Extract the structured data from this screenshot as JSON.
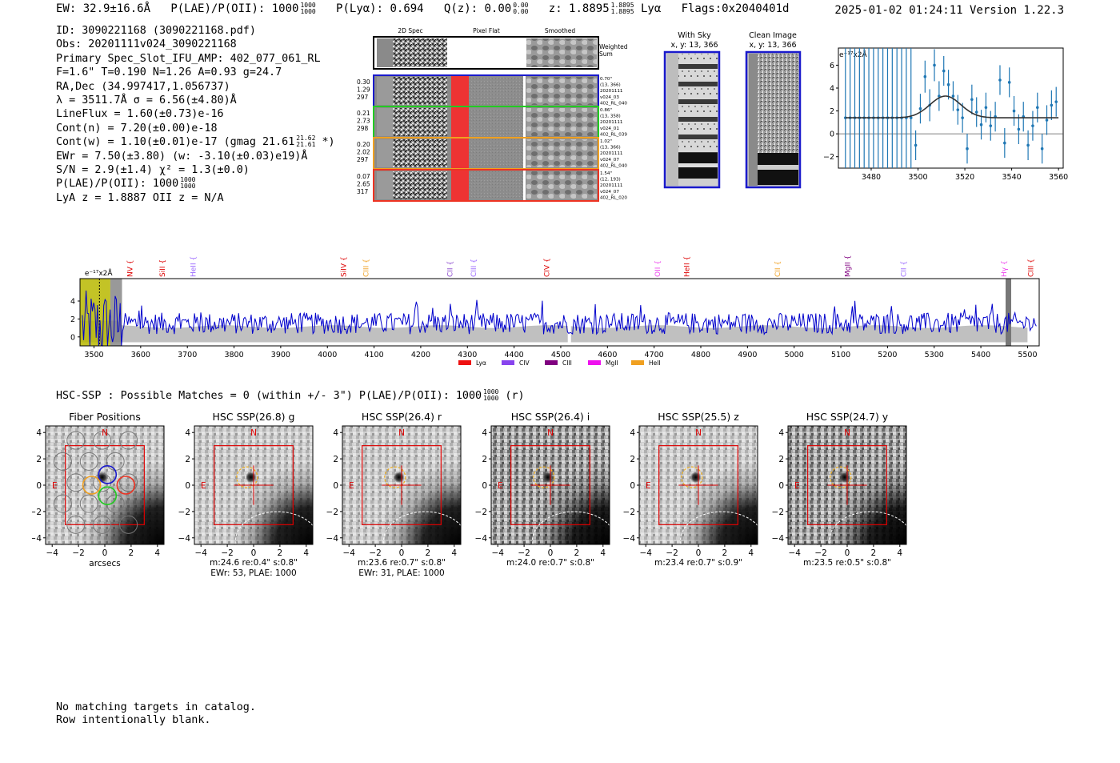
{
  "header": {
    "ew": "EW: 32.9±16.6Å",
    "plae_label": "P(LAE)/P(OII): 1000",
    "plae_hi": "1000",
    "plae_lo": "1000",
    "plya": "P(Lyα): 0.694",
    "qz_label": "Q(z): 0.00",
    "qz_hi": "0.00",
    "qz_lo": "0.00",
    "z_label": "z: 1.8895",
    "z_hi": "1.8895",
    "z_lo": "1.8895",
    "z_line": "Lyα",
    "flags": "Flags:0x2040401d",
    "timestamp": "2025-01-02 01:24:11  Version 1.22.3"
  },
  "info_lines": {
    "id": "ID: 3090221168 (3090221168.pdf)",
    "obs": "Obs: 20201111v024_3090221168",
    "primary": "Primary Spec_Slot_IFU_AMP: 402_077_061_RL",
    "fit": "F=1.6\"  T=0.190  N=1.26  A=0.93  g=24.7",
    "radec": "RA,Dec (34.997417,1.056737)",
    "lambda": "λ = 3511.7Å   σ = 6.56(±4.80)Å",
    "lineflux": "LineFlux = 1.60(±0.73)e-16",
    "contn": "Cont(n) = 7.20(±0.00)e-18",
    "contw": "Cont(w) = 1.10(±0.01)e-17 (gmag 21.61",
    "contw_hi": "21.62",
    "contw_lo": "21.61",
    "contw_end": "*)",
    "ewr": "EWr = 7.50(±3.80) (w: -3.10(±0.03)e19)Å",
    "sn": "S/N = 2.9(±1.4)  χ² = 1.3(±0.0)",
    "plae": "P(LAE)/P(OII): 1000",
    "plae_hi": "1000",
    "plae_lo": "1000",
    "lya": "LyA z = 1.8887  OII z = N/A"
  },
  "cutouts": {
    "headers": [
      "2D Spec",
      "Pixel Flat",
      "Smoothed"
    ],
    "weighted_sum": [
      "Weighted",
      "Sum"
    ],
    "rows": [
      {
        "left": [
          "0.30",
          "1.29",
          "297"
        ],
        "right": [
          "0.70\"",
          "(13, 366)",
          "20201111",
          "v024_03",
          "402_RL_040"
        ],
        "color": "#1a1acc"
      },
      {
        "left": [
          "0.21",
          "2.73",
          "298"
        ],
        "right": [
          "0.86\"",
          "(13, 358)",
          "20201111",
          "v024_01",
          "402_RL_039"
        ],
        "color": "#22cc22"
      },
      {
        "left": [
          "0.20",
          "2.02",
          "297"
        ],
        "right": [
          "1.02\"",
          "(13, 366)",
          "20201111",
          "v024_07",
          "402_RL_040"
        ],
        "color": "#f0a020"
      },
      {
        "left": [
          "0.07",
          "2.65",
          "317"
        ],
        "right": [
          "1.54\"",
          "(12, 193)",
          "20201111",
          "v024_07",
          "402_RL_020"
        ],
        "color": "#ee3322"
      }
    ]
  },
  "sky_panels": {
    "with_sky": [
      "With Sky",
      "x, y: 13, 366"
    ],
    "clean": [
      "Clean Image",
      "x, y: 13, 366"
    ]
  },
  "chart_data": [
    {
      "type": "scatter",
      "title": "",
      "ylabel": "e⁻¹⁷x2Å",
      "xlim": [
        3466,
        3562
      ],
      "ylim": [
        -3,
        7.5
      ],
      "xticks": [
        3480,
        3500,
        3520,
        3540,
        3560
      ],
      "yticks": [
        -2,
        0,
        2,
        4,
        6
      ],
      "gaussian_fit": {
        "center": 3511.7,
        "sigma": 6.56,
        "amplitude": 1.9,
        "baseline": 1.4
      },
      "points": [
        {
          "x": 3469,
          "y": 1.4,
          "err": 8
        },
        {
          "x": 3471,
          "y": 1.4,
          "err": 8
        },
        {
          "x": 3473,
          "y": 1.4,
          "err": 8
        },
        {
          "x": 3475,
          "y": 1.4,
          "err": 8
        },
        {
          "x": 3477,
          "y": 1.4,
          "err": 8
        },
        {
          "x": 3479,
          "y": 1.4,
          "err": 8
        },
        {
          "x": 3481,
          "y": 1.4,
          "err": 8
        },
        {
          "x": 3483,
          "y": 1.4,
          "err": 8
        },
        {
          "x": 3485,
          "y": 1.4,
          "err": 8
        },
        {
          "x": 3487,
          "y": 1.4,
          "err": 8
        },
        {
          "x": 3489,
          "y": 1.4,
          "err": 8
        },
        {
          "x": 3491,
          "y": 1.4,
          "err": 8
        },
        {
          "x": 3493,
          "y": 1.4,
          "err": 8
        },
        {
          "x": 3495,
          "y": 1.4,
          "err": 8
        },
        {
          "x": 3497,
          "y": 1.4,
          "err": 8
        },
        {
          "x": 3499,
          "y": -1.0,
          "err": 1.3
        },
        {
          "x": 3501,
          "y": 2.2,
          "err": 1.3
        },
        {
          "x": 3503,
          "y": 5.0,
          "err": 1.4
        },
        {
          "x": 3505,
          "y": 2.5,
          "err": 1.4
        },
        {
          "x": 3507,
          "y": 6.0,
          "err": 1.4
        },
        {
          "x": 3509,
          "y": 3.3,
          "err": 1.3
        },
        {
          "x": 3511,
          "y": 5.5,
          "err": 1.3
        },
        {
          "x": 3513,
          "y": 4.3,
          "err": 1.3
        },
        {
          "x": 3515,
          "y": 3.3,
          "err": 1.3
        },
        {
          "x": 3517,
          "y": 2.1,
          "err": 1.3
        },
        {
          "x": 3519,
          "y": 1.4,
          "err": 1.3
        },
        {
          "x": 3521,
          "y": -1.3,
          "err": 1.3
        },
        {
          "x": 3523,
          "y": 3.0,
          "err": 1.3
        },
        {
          "x": 3525,
          "y": 1.9,
          "err": 1.3
        },
        {
          "x": 3527,
          "y": 0.8,
          "err": 1.3
        },
        {
          "x": 3529,
          "y": 2.3,
          "err": 1.3
        },
        {
          "x": 3531,
          "y": 0.7,
          "err": 1.3
        },
        {
          "x": 3533,
          "y": 1.5,
          "err": 1.3
        },
        {
          "x": 3535,
          "y": 4.7,
          "err": 1.3
        },
        {
          "x": 3537,
          "y": -0.8,
          "err": 1.3
        },
        {
          "x": 3539,
          "y": 4.5,
          "err": 1.3
        },
        {
          "x": 3541,
          "y": 2.0,
          "err": 1.3
        },
        {
          "x": 3543,
          "y": 0.4,
          "err": 1.3
        },
        {
          "x": 3545,
          "y": 1.5,
          "err": 1.3
        },
        {
          "x": 3547,
          "y": -1.0,
          "err": 1.3
        },
        {
          "x": 3549,
          "y": 0.7,
          "err": 1.3
        },
        {
          "x": 3551,
          "y": 2.3,
          "err": 1.3
        },
        {
          "x": 3553,
          "y": -1.3,
          "err": 1.3
        },
        {
          "x": 3555,
          "y": 1.2,
          "err": 1.3
        },
        {
          "x": 3557,
          "y": 2.5,
          "err": 1.3
        },
        {
          "x": 3559,
          "y": 2.8,
          "err": 1.3
        }
      ]
    },
    {
      "type": "line",
      "title": "",
      "ylabel_inset": "e⁻¹⁷x2Å",
      "xlim": [
        3470,
        5525
      ],
      "ylim": [
        -1.0,
        6.5
      ],
      "xticks": [
        3500,
        3600,
        3700,
        3800,
        3900,
        4000,
        4100,
        4200,
        4300,
        4400,
        4500,
        4600,
        4700,
        4800,
        4900,
        5000,
        5100,
        5200,
        5300,
        5400,
        5500
      ],
      "yticks": [
        0,
        2,
        4
      ],
      "series": [
        {
          "values_summary": "noisy continuum near 1.5, strong noise below 3560",
          "color": "#0000cc"
        }
      ],
      "error_band_color": "#c0c0c0",
      "line_markers": [
        {
          "label": "NV",
          "x": 3582,
          "color": "#dd0000"
        },
        {
          "label": "SiII",
          "x": 3652,
          "color": "#dd0000"
        },
        {
          "label": "HeII",
          "x": 3718,
          "color": "#9966ff"
        },
        {
          "label": "SiIV",
          "x": 4040,
          "color": "#dd0000"
        },
        {
          "label": "CIII",
          "x": 4088,
          "color": "#f0a020"
        },
        {
          "label": "CII",
          "x": 4268,
          "color": "#8844cc"
        },
        {
          "label": "CIII",
          "x": 4318,
          "color": "#9966ff"
        },
        {
          "label": "CIV",
          "x": 4475,
          "color": "#dd0000"
        },
        {
          "label": "OII",
          "x": 4713,
          "color": "#ee44ee"
        },
        {
          "label": "HeII",
          "x": 4775,
          "color": "#dd0000"
        },
        {
          "label": "CII",
          "x": 4970,
          "color": "#f0a020"
        },
        {
          "label": "MgII",
          "x": 5120,
          "color": "#800080"
        },
        {
          "label": "CII",
          "x": 5240,
          "color": "#9966ff"
        },
        {
          "label": "Hγ",
          "x": 5455,
          "color": "#ee44ee"
        },
        {
          "label": "CIII",
          "x": 5512,
          "color": "#dd0000"
        }
      ],
      "legend": [
        {
          "label": "Lyα",
          "color": "#ee1111"
        },
        {
          "label": "CIV",
          "color": "#8844ee"
        },
        {
          "label": "CIII",
          "color": "#800080"
        },
        {
          "label": "MgII",
          "color": "#ee11ee"
        },
        {
          "label": "HeII",
          "color": "#f0a020"
        }
      ],
      "legend_position": "bottom-center"
    }
  ],
  "hsc": {
    "summary": "HSC-SSP : Possible Matches = 0 (within +/- 3\")  P(LAE)/P(OII): 1000",
    "summary_hi": "1000",
    "summary_lo": "1000",
    "summary_end": "(r)",
    "panels": [
      {
        "title": "Fiber Positions",
        "xlabel": "arcsecs",
        "caption": [
          "",
          ""
        ]
      },
      {
        "title": "HSC SSP(26.8) g",
        "xlabel": "",
        "caption": [
          "m:24.6  re:0.4\"  s:0.8\"",
          "EWr: 53, PLAE: 1000"
        ]
      },
      {
        "title": "HSC SSP(26.4) r",
        "xlabel": "",
        "caption": [
          "m:23.6  re:0.7\"  s:0.8\"",
          "EWr: 31, PLAE: 1000"
        ]
      },
      {
        "title": "HSC SSP(26.4) i",
        "xlabel": "",
        "caption": [
          "m:24.0  re:0.7\"  s:0.8\"",
          ""
        ]
      },
      {
        "title": "HSC SSP(25.5) z",
        "xlabel": "",
        "caption": [
          "m:23.4  re:0.7\"  s:0.9\"",
          ""
        ]
      },
      {
        "title": "HSC SSP(24.7) y",
        "xlabel": "",
        "caption": [
          "m:23.5  re:0.5\"  s:0.8\"",
          ""
        ]
      }
    ],
    "compass_n": "N",
    "compass_e": "E",
    "ticks": [
      "−4",
      "−2",
      "0",
      "2",
      "4"
    ]
  },
  "footer": {
    "line1": "No matching targets in catalog.",
    "line2": "Row intentionally blank."
  }
}
